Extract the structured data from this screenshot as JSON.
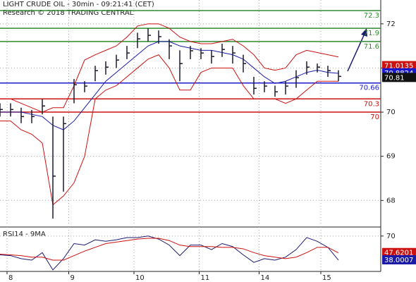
{
  "chart_data": [
    {
      "type": "ohlc",
      "title": "LIGHT CRUDE OIL - 30min - 09:21:41 (CET)",
      "subtitle": "Research © 2018 TRADING CENTRAL",
      "x": [
        0,
        3,
        6,
        9,
        12,
        15,
        18,
        21,
        24,
        27,
        30,
        33,
        36,
        39,
        42,
        45,
        48,
        51,
        54,
        57,
        60,
        63,
        66,
        69,
        72,
        75,
        78,
        81,
        84,
        87,
        90,
        93,
        96
      ],
      "xlim": [
        0,
        108
      ],
      "ylim": [
        67.43,
        72.54
      ],
      "yticks": [
        68,
        69,
        70,
        71,
        72
      ],
      "grid": true,
      "high": [
        70.2,
        70.2,
        70.1,
        70.05,
        70.3,
        69.9,
        69.9,
        70.75,
        70.7,
        71.05,
        71.15,
        71.3,
        71.5,
        71.8,
        71.9,
        71.85,
        71.65,
        71.4,
        71.5,
        71.45,
        71.4,
        71.55,
        71.5,
        71.3,
        70.8,
        70.7,
        70.6,
        70.7,
        70.95,
        71.15,
        71.1,
        71.05,
        70.95
      ],
      "low": [
        69.9,
        69.9,
        69.75,
        69.75,
        69.95,
        67.59,
        68.2,
        70.2,
        70.45,
        70.7,
        70.85,
        71.0,
        71.2,
        71.45,
        71.6,
        71.55,
        71.2,
        70.7,
        71.2,
        71.2,
        71.1,
        71.25,
        71.1,
        70.9,
        70.4,
        70.45,
        70.35,
        70.4,
        70.55,
        70.85,
        70.9,
        70.8,
        70.7
      ],
      "close": [
        70.06,
        70.06,
        69.9,
        69.9,
        70.14,
        68.55,
        69.74,
        70.62,
        70.59,
        70.94,
        71.02,
        71.18,
        71.34,
        71.66,
        71.74,
        71.71,
        71.5,
        71.1,
        71.39,
        71.34,
        71.26,
        71.42,
        71.34,
        71.1,
        70.54,
        70.59,
        70.46,
        70.59,
        70.78,
        71.02,
        71.02,
        70.94,
        70.81
      ],
      "bar_color": "#1a1a2e",
      "bands": [
        {
          "color": "#cc1111",
          "values": [
            70.3,
            70.3,
            70.2,
            70.1,
            70.0,
            70.1,
            70.1,
            70.6,
            71.18,
            71.3,
            71.4,
            71.5,
            71.7,
            71.95,
            72.0,
            72.0,
            71.9,
            71.7,
            71.6,
            71.55,
            71.55,
            71.6,
            71.65,
            71.5,
            71.3,
            71.0,
            70.95,
            71.0,
            71.3,
            71.4,
            71.35,
            71.3,
            71.25
          ]
        },
        {
          "color": "#cc1111",
          "values": [
            69.8,
            69.8,
            69.6,
            69.5,
            69.3,
            67.9,
            68.1,
            68.4,
            69.0,
            70.3,
            70.5,
            70.6,
            70.8,
            71.0,
            71.2,
            71.3,
            71.0,
            70.5,
            70.5,
            70.9,
            71.0,
            71.0,
            71.0,
            70.6,
            70.3,
            70.3,
            70.3,
            70.2,
            70.3,
            70.5,
            70.7,
            70.7,
            70.7
          ]
        },
        {
          "color": "#1a1aa6",
          "values": [
            70.0,
            70.0,
            70.0,
            69.95,
            69.9,
            69.7,
            69.6,
            69.8,
            70.1,
            70.4,
            70.7,
            70.9,
            71.1,
            71.3,
            71.5,
            71.6,
            71.6,
            71.5,
            71.45,
            71.4,
            71.4,
            71.35,
            71.3,
            71.2,
            71.0,
            70.8,
            70.65,
            70.7,
            70.8,
            70.9,
            70.95,
            70.9,
            70.88
          ]
        }
      ],
      "levels": [
        {
          "value": 72.3,
          "color": "#2e8b2e"
        },
        {
          "value": 71.9,
          "color": "#2e8b2e"
        },
        {
          "value": 71.6,
          "color": "#2e8b2e"
        },
        {
          "value": 70.66,
          "color": "#1a1acc"
        },
        {
          "value": 70.3,
          "color": "#cc1111"
        },
        {
          "value": 70,
          "color": "#cc1111"
        }
      ],
      "price_tags": [
        {
          "value": 71.0135,
          "color": "#cc1111"
        },
        {
          "value": 70.8824,
          "color": "#1a1acc"
        },
        {
          "value": 70.81,
          "color": "#111111"
        }
      ]
    },
    {
      "type": "line",
      "title": "RSI14 - 9MA",
      "x": [
        0,
        3,
        6,
        9,
        12,
        15,
        18,
        21,
        24,
        27,
        30,
        33,
        36,
        39,
        42,
        45,
        48,
        51,
        54,
        57,
        60,
        63,
        66,
        69,
        72,
        75,
        78,
        81,
        84,
        87,
        90,
        93,
        96
      ],
      "xlim": [
        0,
        108
      ],
      "ylim": [
        23,
        82
      ],
      "yticks": [
        70
      ],
      "grid": true,
      "xticks": [
        {
          "value": 2,
          "label": "8"
        },
        {
          "value": 19.5,
          "label": "9"
        },
        {
          "value": 38,
          "label": "10"
        },
        {
          "value": 56.5,
          "label": "11"
        },
        {
          "value": 73.5,
          "label": "14"
        },
        {
          "value": 91,
          "label": "15"
        }
      ],
      "series": [
        {
          "color": "#1a1a6e",
          "values": [
            45,
            44,
            40,
            38,
            48,
            25,
            40,
            60,
            58,
            65,
            63,
            65,
            68,
            68,
            70,
            66,
            58,
            44,
            58,
            58,
            52,
            60,
            56,
            45,
            35,
            40,
            38,
            42,
            52,
            68,
            63,
            55,
            38.0007
          ]
        },
        {
          "color": "#cc1111",
          "values": [
            46,
            45,
            44,
            42,
            42,
            38,
            38,
            44,
            50,
            55,
            60,
            62,
            64,
            66,
            67,
            67,
            64,
            58,
            56,
            56,
            56,
            55,
            55,
            53,
            48,
            44,
            42,
            40,
            42,
            48,
            55,
            55,
            47.6201
          ]
        }
      ],
      "value_tags": [
        {
          "value": 47.6201,
          "color": "#cc1111"
        },
        {
          "value": 38.0007,
          "color": "#1a1aa6"
        }
      ]
    }
  ]
}
